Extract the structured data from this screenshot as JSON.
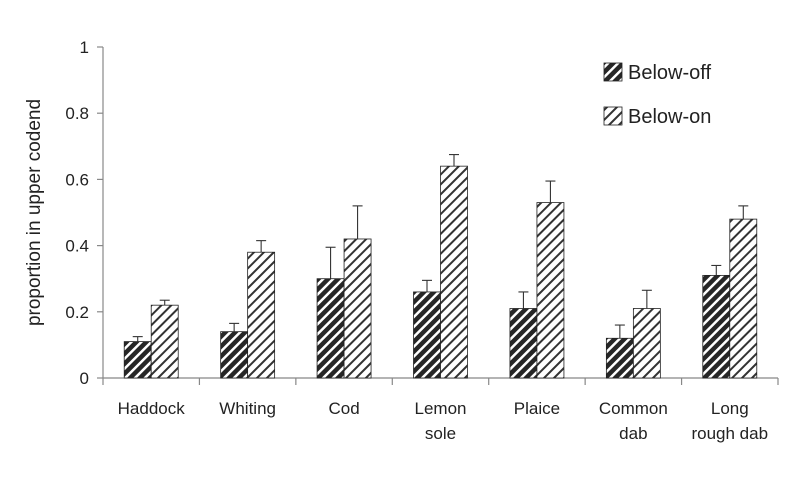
{
  "chart_data": {
    "type": "bar",
    "title": "",
    "xlabel": "",
    "ylabel": "proportion in upper codend",
    "ylim": [
      0,
      1
    ],
    "yticks": [
      "0",
      "0.2",
      "0.4",
      "0.6",
      "0.8",
      "1"
    ],
    "categories": [
      [
        "Haddock"
      ],
      [
        "Whiting"
      ],
      [
        "Cod"
      ],
      [
        "Lemon",
        "sole"
      ],
      [
        "Plaice"
      ],
      [
        "Common",
        "dab"
      ],
      [
        "Long",
        "rough dab"
      ]
    ],
    "series": [
      {
        "name": "Below-off",
        "fill": "#2b2b2b",
        "pattern": "dark-diagonal",
        "values": [
          0.11,
          0.14,
          0.3,
          0.26,
          0.21,
          0.12,
          0.31
        ],
        "errors": [
          0.015,
          0.025,
          0.095,
          0.035,
          0.05,
          0.04,
          0.03
        ]
      },
      {
        "name": "Below-on",
        "fill": "#ffffff",
        "pattern": "light-diagonal",
        "values": [
          0.22,
          0.38,
          0.42,
          0.64,
          0.53,
          0.21,
          0.48
        ],
        "errors": [
          0.015,
          0.035,
          0.1,
          0.035,
          0.065,
          0.055,
          0.04
        ]
      }
    ],
    "legend": {
      "position": "top-right"
    },
    "grid": false
  }
}
